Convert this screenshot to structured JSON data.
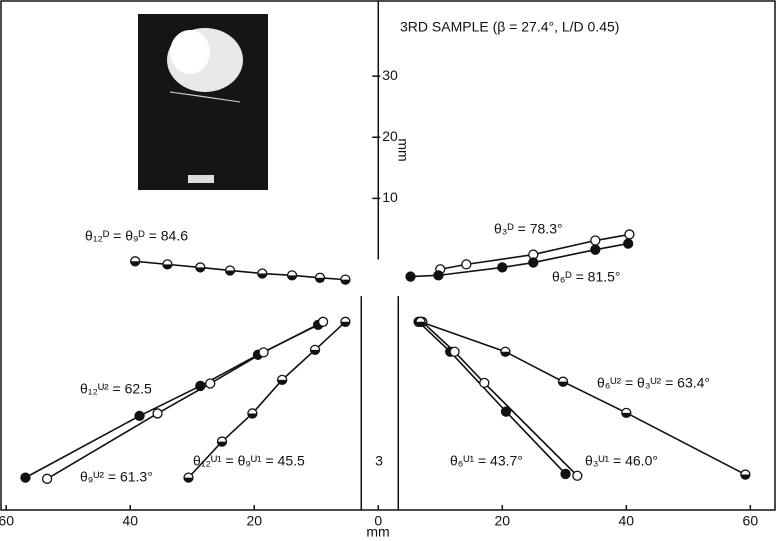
{
  "chart_data": {
    "type": "scatter",
    "title": "3RD SAMPLE (β = 27.4°, L/D 0.45)",
    "xlabel": "mm",
    "ylabel": "mm",
    "center_label": "3",
    "xlim": [
      -61,
      64.3
    ],
    "ylim": [
      -41,
      42.3
    ],
    "xticks": [
      {
        "value": -60,
        "label": "60"
      },
      {
        "value": -40,
        "label": "40"
      },
      {
        "value": -20,
        "label": "20"
      },
      0,
      20,
      40,
      60
    ],
    "yticks": [
      10,
      20,
      30
    ],
    "series": [
      {
        "label": "θ₁₂ᴰ = θ₉ᴰ = 84.6",
        "marker": "half",
        "x": [
          -39.2,
          -34,
          -28.7,
          -23.9,
          -18.7,
          -13.9,
          -9.4,
          -5.3
        ],
        "values": [
          -0.3,
          -0.8,
          -1.3,
          -1.8,
          -2.3,
          -2.6,
          -3.0,
          -3.3
        ]
      },
      {
        "label": "θ₃ᴰ = 78.3°",
        "marker": "open",
        "x": [
          10,
          14.2,
          25,
          35,
          40.5
        ],
        "values": [
          -1.6,
          -0.8,
          0.8,
          3.1,
          4.1
        ]
      },
      {
        "label": "θ₆ᴰ = 81.5°",
        "marker": "filled",
        "x": [
          5.2,
          9.7,
          20,
          25,
          35,
          40.3
        ],
        "values": [
          -2.8,
          -2.6,
          -1.3,
          -0.5,
          1.6,
          2.6
        ]
      },
      {
        "label": "θ₁₂ᵁ² = 62.5",
        "marker": "filled",
        "x": [
          -56.9,
          -38.5,
          -28.7,
          -19.4,
          -9.7
        ],
        "values": [
          -35.7,
          -25.6,
          -20.7,
          -15.6,
          -10.7
        ]
      },
      {
        "label": "θ₉ᵁ² = 61.3°",
        "marker": "open",
        "x": [
          -53.4,
          -35.6,
          -27.1,
          -18.5,
          -8.9
        ],
        "values": [
          -35.9,
          -25.2,
          -20.3,
          -15.2,
          -10.2
        ]
      },
      {
        "label": "θ₁₂ᵁ¹ = θ₉ᵁ¹ = 45.5",
        "marker": "half",
        "x": [
          -30.6,
          -25.2,
          -20.3,
          -15.5,
          -10.2,
          -5.3
        ],
        "values": [
          -35.7,
          -29.8,
          -25.2,
          -19.7,
          -14.8,
          -10.2
        ]
      },
      {
        "label": "θ₆ᵁ¹ = 43.7°",
        "marker": "filled",
        "x": [
          6.5,
          11.6,
          20.6,
          30.2
        ],
        "values": [
          -10.2,
          -15.1,
          -24.9,
          -35.1
        ]
      },
      {
        "label": "θ₃ᵁ¹ = 46.0°",
        "marker": "open",
        "x": [
          7.1,
          12.3,
          17.1,
          32.1
        ],
        "values": [
          -10.2,
          -15.1,
          -20.2,
          -35.4
        ]
      },
      {
        "label": "θ₆ᵁ² = θ₃ᵁ² = 63.4°",
        "marker": "half",
        "x": [
          6.8,
          20.5,
          29.8,
          40,
          59.2
        ],
        "values": [
          -10.2,
          -15.1,
          -20,
          -25.1,
          -35.2
        ]
      }
    ]
  }
}
